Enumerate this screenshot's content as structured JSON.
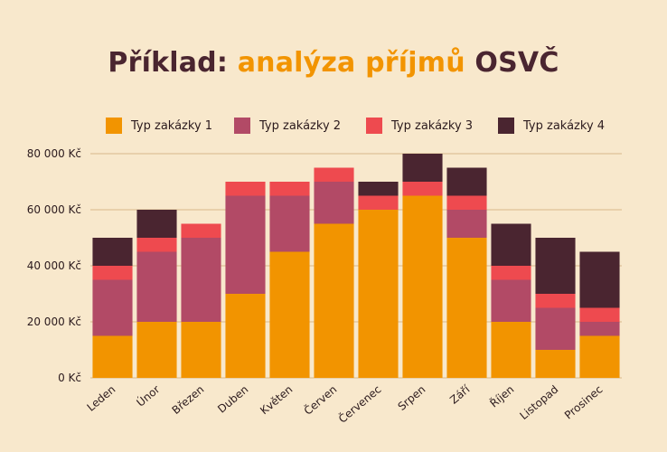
{
  "title": {
    "part1": "Příklad: ",
    "part2": "analýza příjmů",
    "part3": " OSVČ"
  },
  "colors": {
    "background": "#f8e8cc",
    "title_dark": "#4a2530",
    "title_accent": "#f29400",
    "grid": "#d9b98a"
  },
  "chart_data": {
    "type": "bar",
    "stacked": true,
    "title": "Příklad: analýza příjmů OSVČ",
    "xlabel": "",
    "ylabel": "",
    "ylim": [
      0,
      80000
    ],
    "grid": true,
    "legend_position": "top",
    "y_ticks": [
      0,
      20000,
      40000,
      60000,
      80000
    ],
    "y_tick_labels": [
      "0 Kč",
      "20 000 Kč",
      "40 000 Kč",
      "60 000 Kč",
      "80 000 Kč"
    ],
    "categories": [
      "Leden",
      "Únor",
      "Březen",
      "Duben",
      "Květen",
      "Červen",
      "Červenec",
      "Srpen",
      "Září",
      "Říjen",
      "Listopad",
      "Prosinec"
    ],
    "series": [
      {
        "name": "Typ zakázky 1",
        "color": "#f29400",
        "values": [
          15000,
          20000,
          20000,
          30000,
          45000,
          55000,
          60000,
          65000,
          50000,
          20000,
          10000,
          15000
        ]
      },
      {
        "name": "Typ zakázky 2",
        "color": "#b24a66",
        "values": [
          20000,
          25000,
          30000,
          35000,
          20000,
          15000,
          0,
          0,
          10000,
          15000,
          15000,
          5000
        ]
      },
      {
        "name": "Typ zakázky 3",
        "color": "#ee4a4f",
        "values": [
          5000,
          5000,
          5000,
          5000,
          5000,
          5000,
          5000,
          5000,
          5000,
          5000,
          5000,
          5000
        ]
      },
      {
        "name": "Typ zakázky 4",
        "color": "#4a2530",
        "values": [
          10000,
          10000,
          0,
          0,
          0,
          0,
          5000,
          10000,
          10000,
          15000,
          20000,
          20000
        ]
      }
    ]
  }
}
